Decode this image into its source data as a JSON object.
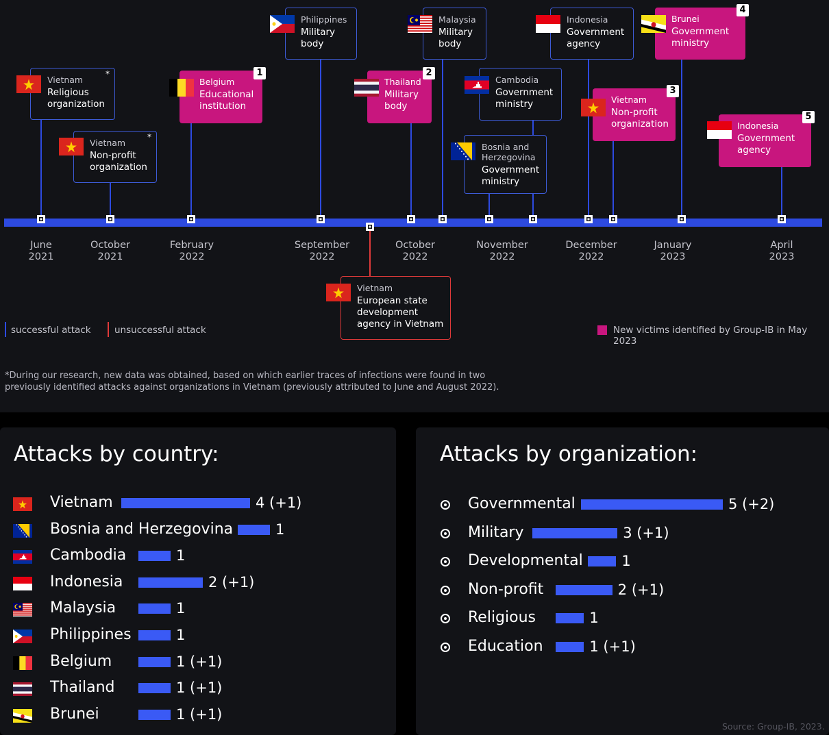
{
  "timeline": {
    "dates": [
      {
        "month": "June",
        "year": "2021"
      },
      {
        "month": "October",
        "year": "2021"
      },
      {
        "month": "February",
        "year": "2022"
      },
      {
        "month": "September",
        "year": "2022"
      },
      {
        "month": "October",
        "year": "2022"
      },
      {
        "month": "November",
        "year": "2022"
      },
      {
        "month": "December",
        "year": "2022"
      },
      {
        "month": "January",
        "year": "2023"
      },
      {
        "month": "April",
        "year": "2023"
      }
    ],
    "events": [
      {
        "country": "Vietnam",
        "org": "Religious\norganization",
        "mark": "*"
      },
      {
        "country": "Vietnam",
        "org": "Non-profit\norganization",
        "mark": "*"
      },
      {
        "country": "Belgium",
        "org": "Educational\ninstitution",
        "badge": "1"
      },
      {
        "country": "Philippines",
        "org": "Military\nbody"
      },
      {
        "country": "Thailand",
        "org": "Military\nbody",
        "badge": "2"
      },
      {
        "country": "Malaysia",
        "org": "Military\nbody"
      },
      {
        "country": "Cambodia",
        "org": "Government\nministry"
      },
      {
        "country": "Bosnia and\nHerzegovina",
        "org": "Government\nministry"
      },
      {
        "country": "Indonesia",
        "org": "Government\nagency"
      },
      {
        "country": "Vietnam",
        "org": "Non-profit\norganization",
        "badge": "3"
      },
      {
        "country": "Brunei",
        "org": "Government\nministry",
        "badge": "4"
      },
      {
        "country": "Indonesia",
        "org": "Government\nagency",
        "badge": "5"
      },
      {
        "country": "Vietnam",
        "org": "European state\ndevelopment\nagency in Vietnam"
      }
    ],
    "legend": {
      "successful": "successful attack",
      "unsuccessful": "unsuccessful attack",
      "new_victims": "New victims identified by Group-IB in May 2023"
    },
    "footnote_1": "*During our research, new data was obtained, based on which earlier traces of infections were found in two",
    "footnote_2": "previously identified attacks against organizations in Vietnam (previously attributed to June and August 2022).",
    "colors": {
      "successful": "#2d4ae0",
      "unsuccessful": "#e03a3a",
      "new": "#c8167e"
    }
  },
  "chart_data": [
    {
      "type": "bar",
      "title": "Attacks by country:",
      "categories": [
        "Vietnam",
        "Bosnia and Herzegovina",
        "Cambodia",
        "Indonesia",
        "Malaysia",
        "Philippines",
        "Belgium",
        "Thailand",
        "Brunei"
      ],
      "values": [
        4,
        1,
        1,
        2,
        1,
        1,
        1,
        1,
        1
      ],
      "value_labels": [
        "4 (+1)",
        "1",
        "1",
        "2 (+1)",
        "1",
        "1",
        "1 (+1)",
        "1 (+1)",
        "1 (+1)"
      ]
    },
    {
      "type": "bar",
      "title": "Attacks by organization:",
      "categories": [
        "Governmental",
        "Military",
        "Developmental",
        "Non-profit",
        "Religious",
        "Education"
      ],
      "values": [
        5,
        3,
        1,
        2,
        1,
        1
      ],
      "value_labels": [
        "5 (+2)",
        "3 (+1)",
        "1",
        "2 (+1)",
        "1",
        "1 (+1)"
      ],
      "icons": [
        "people-icon",
        "military-icon",
        "building-icon",
        "nonprofit-icon",
        "temple-icon",
        "graduation-cap-icon"
      ]
    }
  ],
  "source": "Source: Group-IB, 2023."
}
